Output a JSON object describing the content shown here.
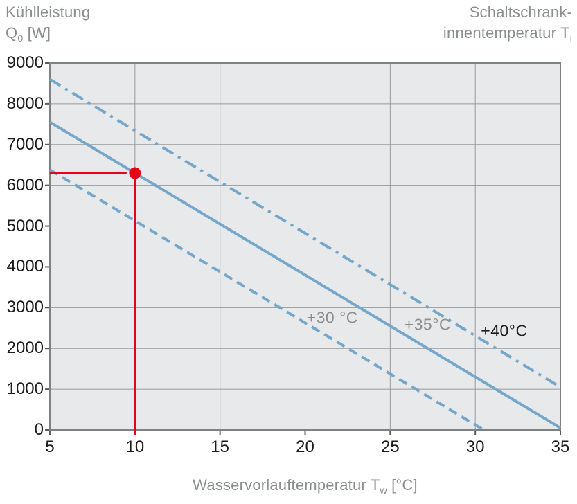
{
  "header": {
    "left_title": {
      "line1": "Kühlleistung",
      "symbol": "Q",
      "symbol_sub": "0",
      "unit": " [W]"
    },
    "right_title": {
      "line1": "Schaltschrank-",
      "line2": "innentemperatur T",
      "line2_sub": "i"
    }
  },
  "x_axis_label": {
    "text": "Wasservorlauftemperatur T",
    "sub": "w",
    "unit": " [°C]"
  },
  "colors": {
    "plot_background": "#e8e9ea",
    "grid": "#97999b",
    "border": "#7e8183",
    "tick": "#595c5e",
    "line_blue": "#74a7c9",
    "annotation_red": "#e30617",
    "text_gray": "#8b8e90",
    "text_black": "#1d1d1b"
  },
  "chart_data": {
    "type": "line",
    "title": "",
    "xlabel": "Wasservorlauftemperatur Tw [°C]",
    "ylabel": "Kühlleistung Q0 [W]",
    "legend_title": "Schaltschrankinnentemperatur Ti",
    "xlim": [
      5,
      35
    ],
    "ylim": [
      0,
      9000
    ],
    "x_ticks": [
      5,
      10,
      15,
      20,
      25,
      30,
      35
    ],
    "y_ticks": [
      0,
      1000,
      2000,
      3000,
      4000,
      5000,
      6000,
      7000,
      8000,
      9000
    ],
    "grid": true,
    "legend_position": "inline-labels",
    "series": [
      {
        "name": "+30 °C",
        "style": "dashed",
        "points": [
          [
            5,
            6380
          ],
          [
            30.5,
            0
          ]
        ],
        "label": "+30 °C",
        "label_color": "#8b8e90",
        "label_at": [
          21.6,
          2750
        ]
      },
      {
        "name": "+35 °C",
        "style": "solid",
        "points": [
          [
            5,
            7550
          ],
          [
            35,
            50
          ]
        ],
        "label": "+35°C",
        "label_color": "#8b8e90",
        "label_at": [
          27.2,
          2580
        ]
      },
      {
        "name": "+40 °C",
        "style": "dashdot",
        "points": [
          [
            5,
            8600
          ],
          [
            35,
            1050
          ]
        ],
        "label": "+40°C",
        "label_color": "#1d1d1b",
        "label_at": [
          31.7,
          2420
        ]
      }
    ],
    "annotation": {
      "description": "operating point on +35 °C curve with guide lines to both axes",
      "point": [
        10,
        6300
      ],
      "h_guide_from_x": 5,
      "v_guide_to_y": 0
    }
  }
}
